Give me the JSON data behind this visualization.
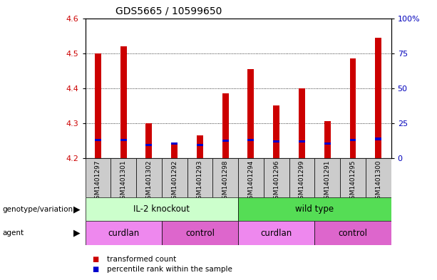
{
  "title": "GDS5665 / 10599650",
  "samples": [
    "GSM1401297",
    "GSM1401301",
    "GSM1401302",
    "GSM1401292",
    "GSM1401293",
    "GSM1401298",
    "GSM1401294",
    "GSM1401296",
    "GSM1401299",
    "GSM1401291",
    "GSM1401295",
    "GSM1401300"
  ],
  "red_values": [
    4.5,
    4.52,
    4.3,
    4.245,
    4.265,
    4.385,
    4.455,
    4.35,
    4.4,
    4.305,
    4.485,
    4.545
  ],
  "blue_values": [
    4.252,
    4.252,
    4.238,
    4.242,
    4.238,
    4.25,
    4.252,
    4.248,
    4.248,
    4.242,
    4.252,
    4.255
  ],
  "y_min": 4.2,
  "y_max": 4.6,
  "y_ticks_left": [
    4.2,
    4.3,
    4.4,
    4.5,
    4.6
  ],
  "y_ticks_right": [
    0,
    25,
    50,
    75,
    100
  ],
  "bar_color": "#cc0000",
  "blue_color": "#0000cc",
  "bar_width": 0.25,
  "genotype_groups": [
    {
      "label": "IL-2 knockout",
      "start": 0,
      "end": 6,
      "color": "#ccffcc"
    },
    {
      "label": "wild type",
      "start": 6,
      "end": 12,
      "color": "#55dd55"
    }
  ],
  "agent_groups_raw": [
    [
      "curdlan",
      0,
      3,
      "#ee88ee"
    ],
    [
      "control",
      3,
      6,
      "#dd66cc"
    ],
    [
      "curdlan",
      6,
      9,
      "#ee88ee"
    ],
    [
      "control",
      9,
      12,
      "#dd66cc"
    ]
  ],
  "legend_items": [
    {
      "label": "transformed count",
      "color": "#cc0000"
    },
    {
      "label": "percentile rank within the sample",
      "color": "#0000cc"
    }
  ],
  "background_color": "#ffffff",
  "tick_label_color_left": "#cc0000",
  "tick_label_color_right": "#0000bb",
  "genotype_label": "genotype/variation",
  "agent_label": "agent",
  "xlabel_bg_color": "#cccccc"
}
